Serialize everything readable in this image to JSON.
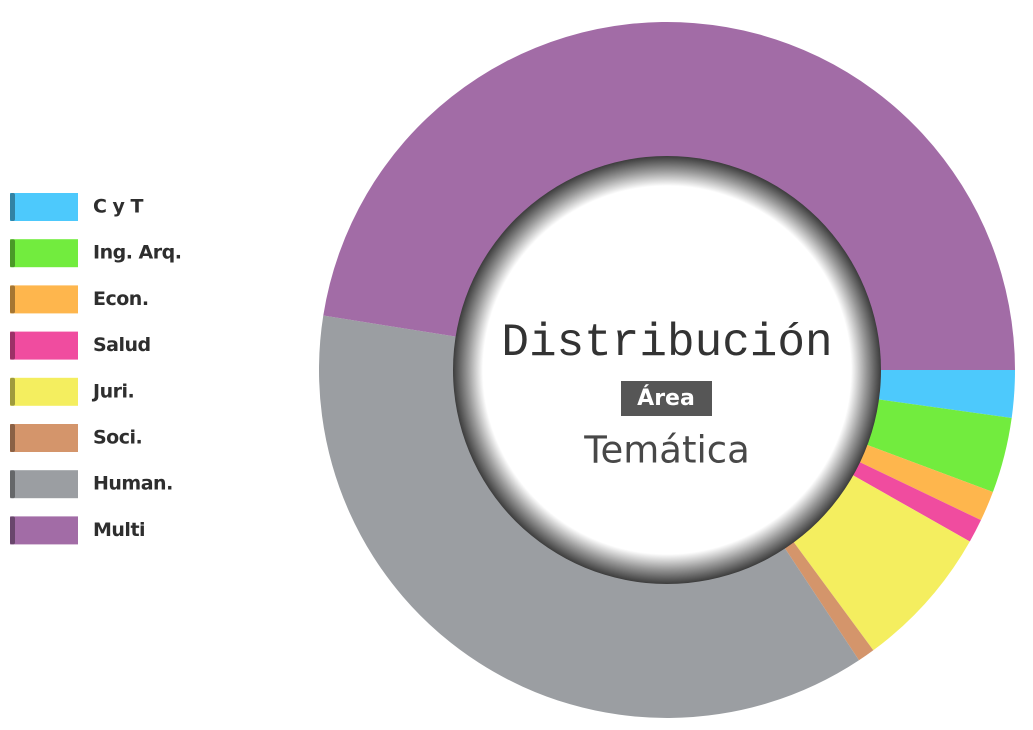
{
  "chart_data": {
    "type": "pie",
    "donut": true,
    "title_lines": [
      "Distribución",
      "Área",
      "Temática"
    ],
    "categories": [
      "C y T",
      "Ing. Arq.",
      "Econ.",
      "Salud",
      "Juri.",
      "Soci.",
      "Human.",
      "Multi"
    ],
    "values": [
      2.2,
      3.5,
      1.4,
      1.1,
      6.7,
      0.8,
      36.8,
      47.5
    ],
    "colors": [
      "#4dc9fc",
      "#72ec3e",
      "#feb64d",
      "#f04c9f",
      "#f4ee5f",
      "#d4956b",
      "#9b9ea2",
      "#a26ca6"
    ],
    "legend": "left"
  }
}
